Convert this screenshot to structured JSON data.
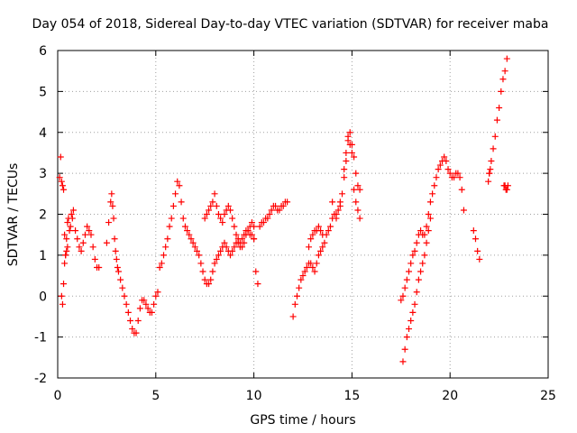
{
  "chart_data": {
    "type": "scatter",
    "title": "Day 054 of 2018, Sidereal Day-to-day VTEC variation (SDTVAR) for receiver maba",
    "xlabel": "GPS time / hours",
    "ylabel": "SDTVAR / TECUs",
    "xlim": [
      0,
      25
    ],
    "ylim": [
      -2,
      6
    ],
    "x_ticks": [
      0,
      5,
      10,
      15,
      20,
      25
    ],
    "y_ticks": [
      -2,
      -1,
      0,
      1,
      2,
      3,
      4,
      5,
      6
    ],
    "x_tick_labels": [
      "0",
      "5",
      "10",
      "15",
      "20",
      "25"
    ],
    "y_tick_labels": [
      "-2",
      "-1",
      "0",
      "1",
      "2",
      "3",
      "4",
      "5",
      "6"
    ],
    "grid": true,
    "marker": "+",
    "color": "#ff0000",
    "series": [
      {
        "name": "SDTVAR",
        "x": [
          0.1,
          0.15,
          0.2,
          0.25,
          0.3,
          0.35,
          0.4,
          0.45,
          0.5,
          0.55,
          0.6,
          0.65,
          0.7,
          0.75,
          0.8,
          0.9,
          1.0,
          1.1,
          1.2,
          1.3,
          1.4,
          1.5,
          1.6,
          1.7,
          1.8,
          1.9,
          2.0,
          2.1,
          0.2,
          0.25,
          0.3,
          0.35,
          0.4,
          0.45,
          0.5,
          2.5,
          2.6,
          2.7,
          2.75,
          2.8,
          2.85,
          2.9,
          2.95,
          3.0,
          3.05,
          3.1,
          3.2,
          3.3,
          3.4,
          3.5,
          3.6,
          3.7,
          3.8,
          3.9,
          4.0,
          4.1,
          4.2,
          4.3,
          4.4,
          4.5,
          4.6,
          4.7,
          4.8,
          4.9,
          5.0,
          5.1,
          5.2,
          5.3,
          5.4,
          5.5,
          5.6,
          5.7,
          5.8,
          5.9,
          6.0,
          6.1,
          6.2,
          6.3,
          6.4,
          6.5,
          6.6,
          6.7,
          6.8,
          6.9,
          7.0,
          7.1,
          7.2,
          7.3,
          7.4,
          7.5,
          7.6,
          7.7,
          7.8,
          7.9,
          8.0,
          8.1,
          8.2,
          8.3,
          8.4,
          8.5,
          8.6,
          8.7,
          8.8,
          8.9,
          9.0,
          9.1,
          9.2,
          9.3,
          9.4,
          9.5,
          9.6,
          9.7,
          9.8,
          9.9,
          7.5,
          7.6,
          7.7,
          7.8,
          7.9,
          8.0,
          8.1,
          8.2,
          8.3,
          8.4,
          8.5,
          8.6,
          8.7,
          8.8,
          8.9,
          9.0,
          9.1,
          9.2,
          9.3,
          9.4,
          9.5,
          9.6,
          9.7,
          9.8,
          9.9,
          10.0,
          10.0,
          10.1,
          10.2,
          10.3,
          10.4,
          10.5,
          10.6,
          10.7,
          10.8,
          10.9,
          11.0,
          11.1,
          11.2,
          11.3,
          11.4,
          11.5,
          11.6,
          11.7,
          10.0,
          12.0,
          12.1,
          12.2,
          12.3,
          12.4,
          12.5,
          12.6,
          12.7,
          12.8,
          12.9,
          13.0,
          13.1,
          13.2,
          13.3,
          13.4,
          13.5,
          13.6,
          13.7,
          13.8,
          13.9,
          14.0,
          14.1,
          14.2,
          14.3,
          14.4,
          14.5,
          14.6,
          14.7,
          14.8,
          14.9,
          15.0,
          15.1,
          15.2,
          15.3,
          15.4,
          12.8,
          12.9,
          13.0,
          13.1,
          13.2,
          13.3,
          13.4,
          13.5,
          14.0,
          14.2,
          14.4,
          14.6,
          14.7,
          14.8,
          14.9,
          15.0,
          15.1,
          15.2,
          15.3,
          15.4,
          17.5,
          17.6,
          17.7,
          17.8,
          17.9,
          18.0,
          18.1,
          18.2,
          18.3,
          18.4,
          18.5,
          18.6,
          18.7,
          18.8,
          18.9,
          19.0,
          19.1,
          19.2,
          19.3,
          19.4,
          19.5,
          19.6,
          19.7,
          19.8,
          19.9,
          20.0,
          20.1,
          20.2,
          20.3,
          20.4,
          20.5,
          20.6,
          20.7,
          17.6,
          17.7,
          17.8,
          17.9,
          18.0,
          18.1,
          18.2,
          18.3,
          18.4,
          18.5,
          18.6,
          18.7,
          18.8,
          18.9,
          19.0,
          21.2,
          21.3,
          21.4,
          21.5,
          22.0,
          22.1,
          22.2,
          22.3,
          22.4,
          22.5,
          22.6,
          22.7,
          22.8,
          22.9,
          22.75,
          22.8,
          22.85,
          22.9,
          22.95,
          21.95,
          22.0,
          22.05
        ],
        "y": [
          2.9,
          3.4,
          2.8,
          2.7,
          2.6,
          1.5,
          1.0,
          1.1,
          1.8,
          1.9,
          1.6,
          1.7,
          2.0,
          1.9,
          2.1,
          1.6,
          1.4,
          1.2,
          1.1,
          1.3,
          1.5,
          1.7,
          1.6,
          1.5,
          1.2,
          0.9,
          0.7,
          0.7,
          0.0,
          -0.2,
          0.3,
          0.8,
          1.0,
          1.4,
          1.2,
          1.3,
          1.8,
          2.3,
          2.5,
          2.2,
          1.9,
          1.4,
          1.1,
          0.9,
          0.7,
          0.6,
          0.4,
          0.2,
          0.0,
          -0.2,
          -0.4,
          -0.6,
          -0.8,
          -0.9,
          -0.9,
          -0.6,
          -0.3,
          -0.1,
          -0.1,
          -0.2,
          -0.3,
          -0.4,
          -0.4,
          -0.2,
          0.0,
          0.1,
          0.7,
          0.8,
          1.0,
          1.2,
          1.4,
          1.7,
          1.9,
          2.2,
          2.5,
          2.8,
          2.7,
          2.3,
          1.9,
          1.7,
          1.6,
          1.5,
          1.4,
          1.3,
          1.2,
          1.1,
          1.0,
          0.8,
          0.6,
          0.4,
          0.3,
          0.3,
          0.4,
          0.6,
          0.8,
          0.9,
          1.0,
          1.1,
          1.2,
          1.3,
          1.2,
          1.1,
          1.0,
          1.1,
          1.2,
          1.3,
          1.3,
          1.2,
          1.2,
          1.3,
          1.5,
          1.6,
          1.7,
          1.8,
          1.9,
          2.0,
          2.1,
          2.2,
          2.3,
          2.5,
          2.2,
          2.0,
          1.9,
          1.8,
          2.0,
          2.1,
          2.2,
          2.1,
          1.9,
          1.7,
          1.5,
          1.4,
          1.3,
          1.4,
          1.5,
          1.6,
          1.6,
          1.5,
          1.5,
          1.4,
          1.4,
          0.6,
          0.3,
          1.7,
          1.8,
          1.8,
          1.9,
          1.9,
          2.0,
          2.1,
          2.2,
          2.2,
          2.1,
          2.1,
          2.2,
          2.2,
          2.3,
          2.3,
          1.7,
          -0.5,
          -0.2,
          0.0,
          0.2,
          0.4,
          0.5,
          0.6,
          0.7,
          0.8,
          0.8,
          0.7,
          0.6,
          0.8,
          1.0,
          1.1,
          1.2,
          1.3,
          1.5,
          1.6,
          1.7,
          1.9,
          2.0,
          2.0,
          2.1,
          2.2,
          2.5,
          2.9,
          3.3,
          3.8,
          4.0,
          3.7,
          3.4,
          3.0,
          2.7,
          2.6,
          1.2,
          1.4,
          1.5,
          1.6,
          1.6,
          1.7,
          1.6,
          1.5,
          2.3,
          1.9,
          2.3,
          3.1,
          3.5,
          3.9,
          3.7,
          3.5,
          2.6,
          2.3,
          2.1,
          1.9,
          -0.1,
          0.0,
          0.2,
          0.4,
          0.6,
          0.8,
          1.0,
          1.1,
          1.3,
          1.5,
          1.6,
          1.5,
          1.5,
          1.7,
          2.0,
          2.3,
          2.5,
          2.7,
          2.9,
          3.1,
          3.2,
          3.3,
          3.4,
          3.3,
          3.1,
          3.0,
          2.9,
          2.9,
          3.0,
          3.0,
          2.9,
          2.6,
          2.1,
          -1.6,
          -1.3,
          -1.0,
          -0.8,
          -0.6,
          -0.4,
          -0.2,
          0.1,
          0.4,
          0.6,
          0.8,
          1.0,
          1.3,
          1.6,
          1.9,
          1.6,
          1.4,
          1.1,
          0.9,
          3.0,
          3.3,
          3.6,
          3.9,
          4.3,
          4.6,
          5.0,
          5.3,
          5.5,
          5.8,
          2.7,
          2.7,
          2.6,
          2.6,
          2.7,
          2.8,
          3.0,
          3.1
        ]
      }
    ]
  }
}
